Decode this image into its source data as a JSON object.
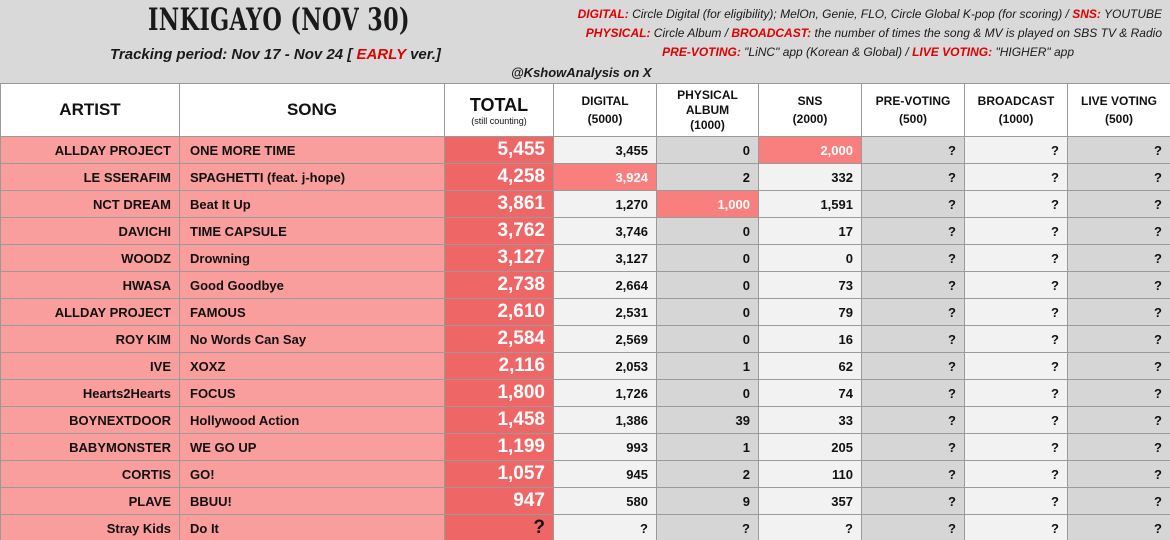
{
  "header": {
    "title": "INKIGAYO (NOV 30)",
    "tracking_prefix": "Tracking period: Nov 17 - Nov 24 [ ",
    "tracking_early": "EARLY",
    "tracking_suffix": " ver.]",
    "credit": "@KshowAnalysis on X",
    "legend": {
      "digital_label": "DIGITAL:",
      "digital_text": " Circle Digital (for eligibility); MelOn, Genie, FLO, Circle Global K-pop (for scoring) / ",
      "sns_label": "SNS:",
      "sns_text": " YOUTUBE",
      "physical_label": "PHYSICAL:",
      "physical_text": " Circle Album / ",
      "broadcast_label": "BROADCAST:",
      "broadcast_text": " the number of times the song & MV is played on SBS TV & Radio",
      "prevoting_label": "PRE-VOTING:",
      "prevoting_text": " \"LiNC\" app (Korean & Global) / ",
      "livevoting_label": "LIVE VOTING:",
      "livevoting_text": " \"HIGHER\" app"
    }
  },
  "columns": {
    "artist": "ARTIST",
    "song": "SONG",
    "total": "TOTAL",
    "total_sub": "(still counting)",
    "digital": "DIGITAL",
    "digital_max": "(5000)",
    "physical_1": "PHYSICAL",
    "physical_2": "ALBUM",
    "physical_max": "(1000)",
    "sns": "SNS",
    "sns_max": "(2000)",
    "prevoting": "PRE-VOTING",
    "prevoting_max": "(500)",
    "broadcast": "BROADCAST",
    "broadcast_max": "(1000)",
    "livevoting": "LIVE VOTING",
    "livevoting_max": "(500)"
  },
  "rows": [
    {
      "artist": "ALLDAY PROJECT",
      "song": "ONE MORE TIME",
      "total": "5,455",
      "digital": "3,455",
      "physical": "0",
      "sns": "2,000",
      "prevoting": "?",
      "broadcast": "?",
      "livevoting": "?"
    },
    {
      "artist": "LE SSERAFIM",
      "song": "SPAGHETTI (feat. j-hope)",
      "total": "4,258",
      "digital": "3,924",
      "physical": "2",
      "sns": "332",
      "prevoting": "?",
      "broadcast": "?",
      "livevoting": "?"
    },
    {
      "artist": "NCT DREAM",
      "song": "Beat It Up",
      "total": "3,861",
      "digital": "1,270",
      "physical": "1,000",
      "sns": "1,591",
      "prevoting": "?",
      "broadcast": "?",
      "livevoting": "?"
    },
    {
      "artist": "DAVICHI",
      "song": "TIME CAPSULE",
      "total": "3,762",
      "digital": "3,746",
      "physical": "0",
      "sns": "17",
      "prevoting": "?",
      "broadcast": "?",
      "livevoting": "?"
    },
    {
      "artist": "WOODZ",
      "song": "Drowning",
      "total": "3,127",
      "digital": "3,127",
      "physical": "0",
      "sns": "0",
      "prevoting": "?",
      "broadcast": "?",
      "livevoting": "?"
    },
    {
      "artist": "HWASA",
      "song": "Good Goodbye",
      "total": "2,738",
      "digital": "2,664",
      "physical": "0",
      "sns": "73",
      "prevoting": "?",
      "broadcast": "?",
      "livevoting": "?"
    },
    {
      "artist": "ALLDAY PROJECT",
      "song": "FAMOUS",
      "total": "2,610",
      "digital": "2,531",
      "physical": "0",
      "sns": "79",
      "prevoting": "?",
      "broadcast": "?",
      "livevoting": "?"
    },
    {
      "artist": "ROY KIM",
      "song": "No Words Can Say",
      "total": "2,584",
      "digital": "2,569",
      "physical": "0",
      "sns": "16",
      "prevoting": "?",
      "broadcast": "?",
      "livevoting": "?"
    },
    {
      "artist": "IVE",
      "song": "XOXZ",
      "total": "2,116",
      "digital": "2,053",
      "physical": "1",
      "sns": "62",
      "prevoting": "?",
      "broadcast": "?",
      "livevoting": "?"
    },
    {
      "artist": "Hearts2Hearts",
      "song": "FOCUS",
      "total": "1,800",
      "digital": "1,726",
      "physical": "0",
      "sns": "74",
      "prevoting": "?",
      "broadcast": "?",
      "livevoting": "?"
    },
    {
      "artist": "BOYNEXTDOOR",
      "song": "Hollywood Action",
      "total": "1,458",
      "digital": "1,386",
      "physical": "39",
      "sns": "33",
      "prevoting": "?",
      "broadcast": "?",
      "livevoting": "?"
    },
    {
      "artist": "BABYMONSTER",
      "song": "WE GO UP",
      "total": "1,199",
      "digital": "993",
      "physical": "1",
      "sns": "205",
      "prevoting": "?",
      "broadcast": "?",
      "livevoting": "?"
    },
    {
      "artist": "CORTIS",
      "song": "GO!",
      "total": "1,057",
      "digital": "945",
      "physical": "2",
      "sns": "110",
      "prevoting": "?",
      "broadcast": "?",
      "livevoting": "?"
    },
    {
      "artist": "PLAVE",
      "song": "BBUU!",
      "total": "947",
      "digital": "580",
      "physical": "9",
      "sns": "357",
      "prevoting": "?",
      "broadcast": "?",
      "livevoting": "?"
    },
    {
      "artist": "Stray Kids",
      "song": "Do It",
      "total": "?",
      "digital": "?",
      "physical": "?",
      "sns": "?",
      "prevoting": "?",
      "broadcast": "?",
      "livevoting": "?"
    }
  ],
  "highlights": {
    "max_color": "#f97e7e",
    "total_color": "#ef6666",
    "artist_color": "#f99d9d"
  }
}
